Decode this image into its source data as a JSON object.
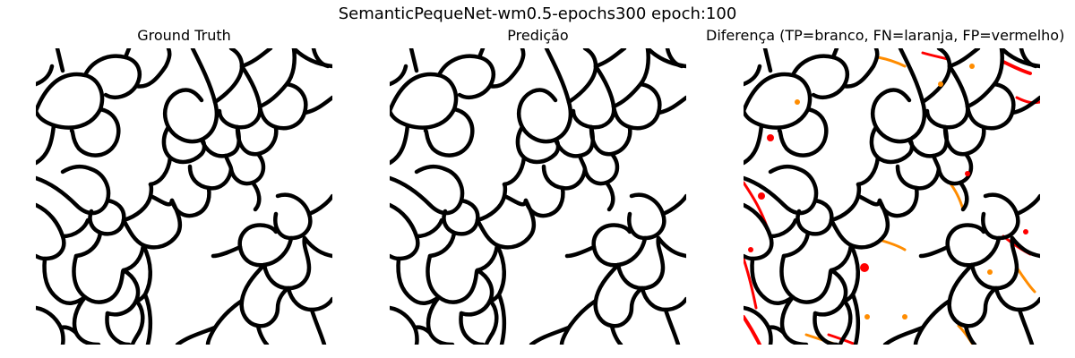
{
  "figure": {
    "suptitle": "SemanticPequeNet-wm0.5-epochs300 epoch:100"
  },
  "panels": [
    {
      "title": "Ground Truth"
    },
    {
      "title": "Predição"
    },
    {
      "title": "Diferença (TP=branco, FN=laranja, FP=vermelho)"
    }
  ],
  "colors": {
    "background": "#ffffff",
    "membrane": "#000000",
    "true_positive": "#ffffff",
    "false_negative": "#ff8c00",
    "false_positive": "#ff0000"
  }
}
